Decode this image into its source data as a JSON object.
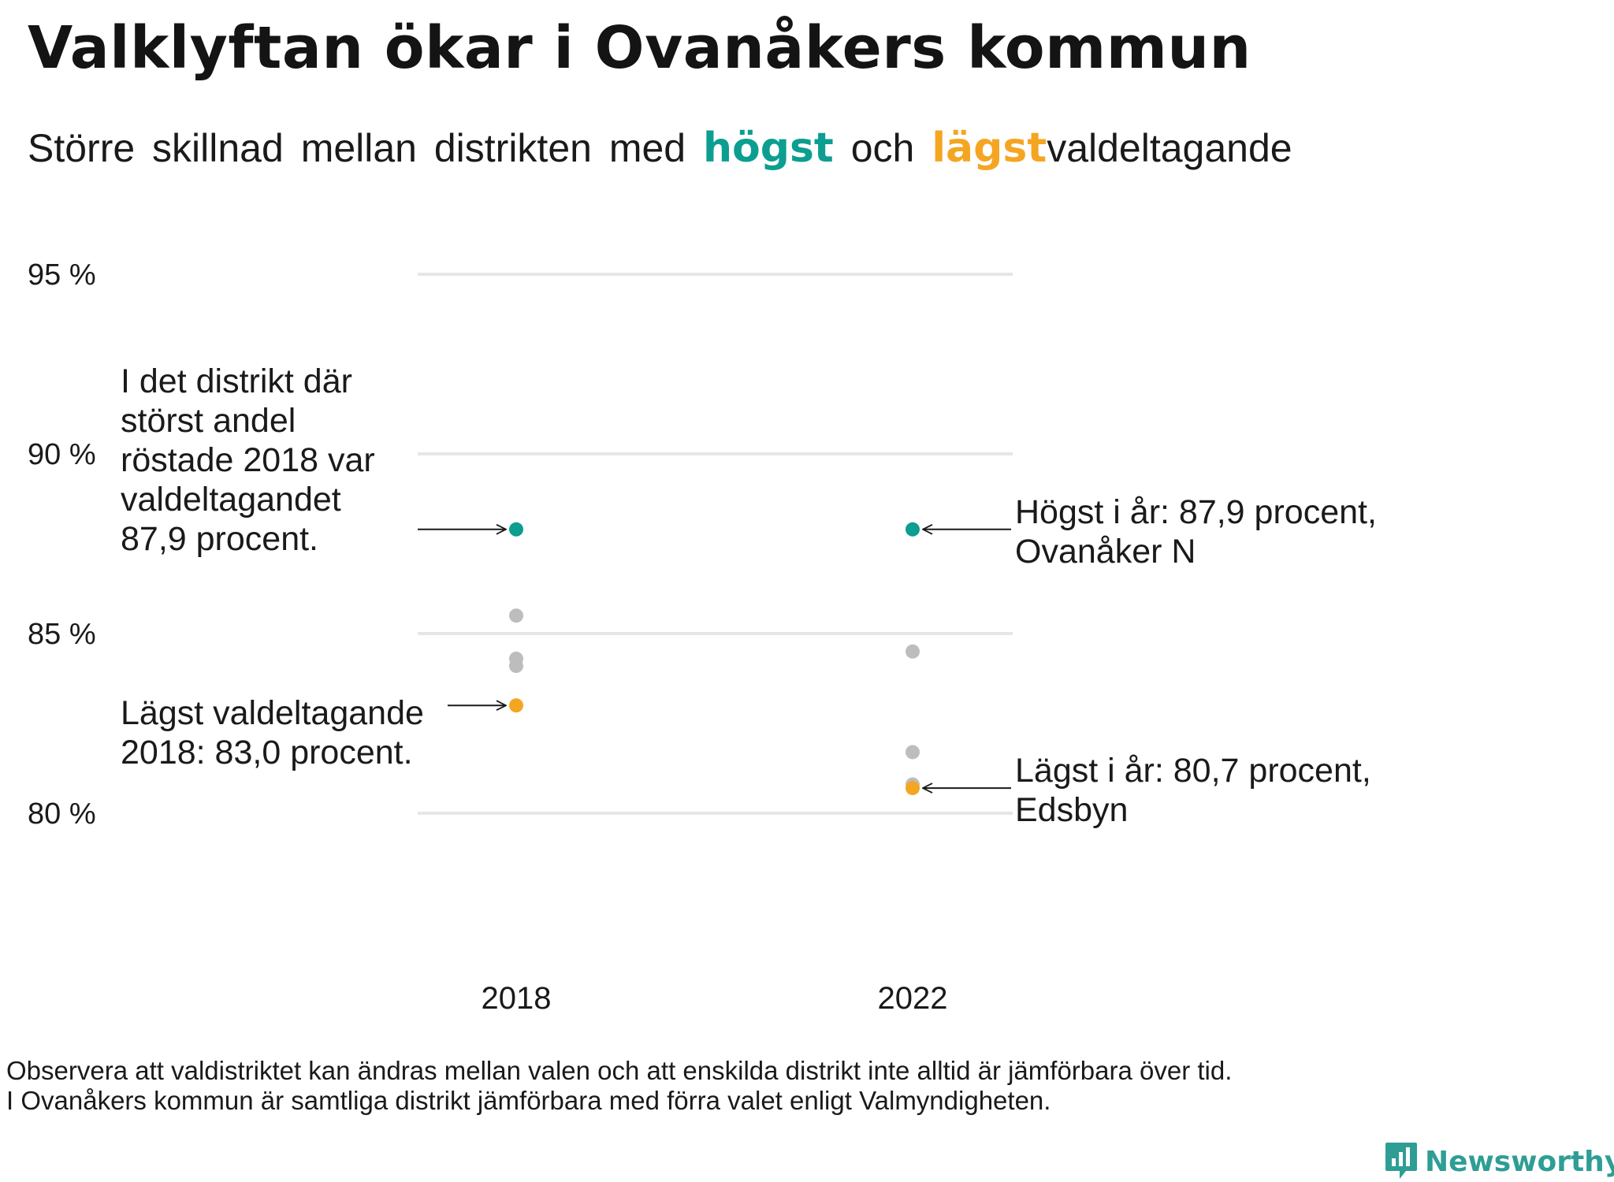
{
  "title": "Valklyftan ökar i Ovanåkers kommun",
  "subtitle": {
    "part1": "Större skillnad mellan distrikten med",
    "highlight_high": "högst",
    "part2": "och",
    "highlight_low": "lägst",
    "part3": "valdeltagande"
  },
  "colors": {
    "highest": "#0b9e91",
    "lowest": "#f4a622",
    "other": "#bdbdbd",
    "grid": "#e6e6e6"
  },
  "chart_data": {
    "type": "scatter",
    "categories": [
      "2018",
      "2022"
    ],
    "ylim": [
      80,
      95
    ],
    "y_ticks": [
      {
        "value": 95,
        "label": "95 %"
      },
      {
        "value": 90,
        "label": "90 %"
      },
      {
        "value": 85,
        "label": "85 %"
      },
      {
        "value": 80,
        "label": "80 %"
      }
    ],
    "grid": true,
    "points": [
      {
        "category": "2018",
        "value": 87.9,
        "group": "highest"
      },
      {
        "category": "2018",
        "value": 85.5,
        "group": "other"
      },
      {
        "category": "2018",
        "value": 84.3,
        "group": "other"
      },
      {
        "category": "2018",
        "value": 84.1,
        "group": "other"
      },
      {
        "category": "2018",
        "value": 83.0,
        "group": "lowest"
      },
      {
        "category": "2022",
        "value": 87.9,
        "group": "highest"
      },
      {
        "category": "2022",
        "value": 84.5,
        "group": "other"
      },
      {
        "category": "2022",
        "value": 81.7,
        "group": "other"
      },
      {
        "category": "2022",
        "value": 80.8,
        "group": "other"
      },
      {
        "category": "2022",
        "value": 80.7,
        "group": "lowest"
      }
    ],
    "annotations": [
      {
        "id": "high-2018",
        "category": "2018",
        "value": 87.9,
        "side": "left",
        "lines": [
          "I det distrikt där",
          "störst andel",
          "röstade 2018 var",
          "valdeltagandet",
          "87,9 procent."
        ]
      },
      {
        "id": "low-2018",
        "category": "2018",
        "value": 83.0,
        "side": "left",
        "lines": [
          "Lägst valdeltagande",
          "2018: 83,0 procent."
        ]
      },
      {
        "id": "high-2022",
        "category": "2022",
        "value": 87.9,
        "side": "right",
        "lines": [
          "Högst i år: 87,9 procent,",
          "Ovanåker N"
        ]
      },
      {
        "id": "low-2022",
        "category": "2022",
        "value": 80.7,
        "side": "right",
        "lines": [
          "Lägst i år: 80,7 procent,",
          "Edsbyn"
        ]
      }
    ]
  },
  "footnote": {
    "line1": "Observera att valdistriktet kan ändras mellan valen och att enskilda distrikt inte alltid är jämförbara över tid.",
    "line2": "I Ovanåkers kommun är samtliga distrikt jämförbara med förra valet enligt Valmyndigheten."
  },
  "logo": {
    "text": "Newsworthy",
    "icon": "bar-chart-icon"
  }
}
